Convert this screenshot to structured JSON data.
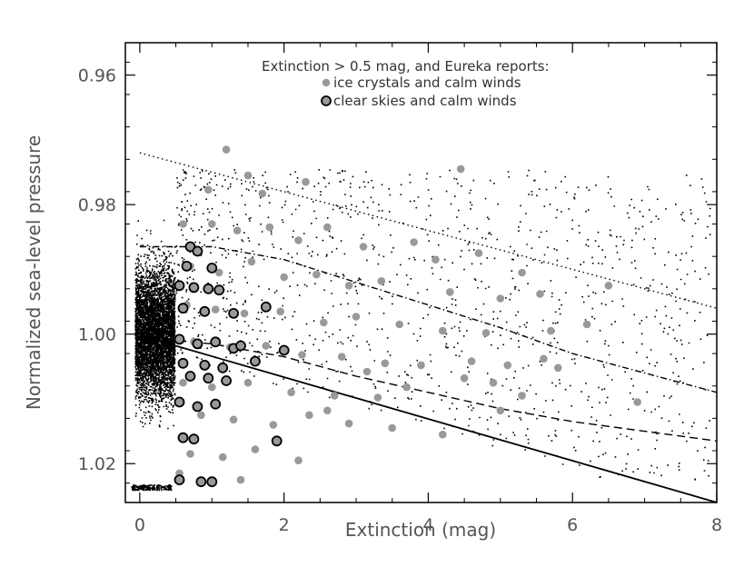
{
  "chart_data": {
    "type": "scatter",
    "title": "",
    "xlabel": "Extinction (mag)",
    "ylabel": "Normalized sea-level pressure",
    "xlim": [
      -0.2,
      8.0
    ],
    "ylim": [
      0.955,
      1.026
    ],
    "y_inverted": true,
    "grid": false,
    "x_ticks": [
      0,
      2,
      4,
      6,
      8
    ],
    "x_tick_labels": [
      "0",
      "2",
      "4",
      "6",
      "8"
    ],
    "y_ticks": [
      0.96,
      0.98,
      1.0,
      1.02
    ],
    "y_tick_labels": [
      "0.96",
      "0.98",
      "1.00",
      "1.02"
    ],
    "legend": {
      "title": "Extinction > 0.5 mag, and Eureka reports:",
      "placement": "top-center",
      "entries": [
        {
          "label": "ice crystals and calm winds",
          "marker": "gray-dot"
        },
        {
          "label": "clear skies and calm winds",
          "marker": "gray-dot-black-outline"
        }
      ]
    },
    "colors": {
      "background_points": "#000000",
      "ice_crystals": "#999999",
      "clear_skies_fill": "#999999",
      "clear_skies_edge": "#000000",
      "axes": "#000000",
      "text": "#555555"
    },
    "lines": [
      {
        "style": "dotted",
        "x": [
          0.0,
          8.0
        ],
        "y": [
          0.972,
          0.996
        ]
      },
      {
        "style": "dash-dot",
        "x": [
          0.0,
          1.0,
          2.0,
          3.0,
          4.0,
          5.0,
          6.0,
          7.0,
          8.0
        ],
        "y": [
          0.9865,
          0.9865,
          0.9885,
          0.992,
          0.9955,
          0.999,
          1.003,
          1.006,
          1.009
        ]
      },
      {
        "style": "dashed",
        "x": [
          0.0,
          1.0,
          2.0,
          3.0,
          4.0,
          5.0,
          6.0,
          7.0,
          8.0
        ],
        "y": [
          1.0005,
          1.0015,
          1.0035,
          1.0065,
          1.009,
          1.0115,
          1.0135,
          1.015,
          1.0165
        ]
      },
      {
        "style": "solid",
        "x": [
          0.0,
          8.0
        ],
        "y": [
          1.0002,
          1.026
        ]
      }
    ],
    "series": [
      {
        "name": "ice crystals and calm winds",
        "points": [
          [
            1.2,
            0.9715
          ],
          [
            1.5,
            0.9755
          ],
          [
            0.95,
            0.9777
          ],
          [
            1.7,
            0.9783
          ],
          [
            2.3,
            0.9765
          ],
          [
            4.45,
            0.9745
          ],
          [
            0.6,
            0.983
          ],
          [
            1.0,
            0.983
          ],
          [
            1.35,
            0.984
          ],
          [
            1.8,
            0.9835
          ],
          [
            2.2,
            0.9855
          ],
          [
            2.6,
            0.9835
          ],
          [
            3.1,
            0.9865
          ],
          [
            3.8,
            0.9858
          ],
          [
            4.1,
            0.9885
          ],
          [
            4.7,
            0.9875
          ],
          [
            5.3,
            0.9905
          ],
          [
            6.5,
            0.9925
          ],
          [
            0.7,
            0.9895
          ],
          [
            1.1,
            0.9905
          ],
          [
            1.55,
            0.9888
          ],
          [
            2.0,
            0.9912
          ],
          [
            2.45,
            0.9908
          ],
          [
            2.9,
            0.9925
          ],
          [
            3.35,
            0.9918
          ],
          [
            4.3,
            0.9935
          ],
          [
            5.0,
            0.9945
          ],
          [
            5.55,
            0.9938
          ],
          [
            0.65,
            0.9955
          ],
          [
            1.05,
            0.9962
          ],
          [
            1.45,
            0.9968
          ],
          [
            1.95,
            0.9965
          ],
          [
            2.55,
            0.9982
          ],
          [
            3.0,
            0.9973
          ],
          [
            3.6,
            0.9985
          ],
          [
            4.2,
            0.9995
          ],
          [
            4.8,
            0.9998
          ],
          [
            5.7,
            0.9995
          ],
          [
            6.2,
            0.9985
          ],
          [
            0.75,
            1.0012
          ],
          [
            1.25,
            1.002
          ],
          [
            1.75,
            1.0018
          ],
          [
            2.25,
            1.0032
          ],
          [
            2.8,
            1.0035
          ],
          [
            3.4,
            1.0045
          ],
          [
            3.9,
            1.0048
          ],
          [
            4.6,
            1.0042
          ],
          [
            5.1,
            1.0048
          ],
          [
            5.6,
            1.0038
          ],
          [
            0.6,
            1.0075
          ],
          [
            1.0,
            1.0082
          ],
          [
            1.5,
            1.0075
          ],
          [
            2.1,
            1.009
          ],
          [
            2.7,
            1.0095
          ],
          [
            3.3,
            1.0098
          ],
          [
            3.7,
            1.0082
          ],
          [
            4.9,
            1.0075
          ],
          [
            5.3,
            1.0095
          ],
          [
            6.9,
            1.0105
          ],
          [
            0.85,
            1.0125
          ],
          [
            1.3,
            1.0132
          ],
          [
            1.85,
            1.014
          ],
          [
            2.35,
            1.0125
          ],
          [
            2.9,
            1.0138
          ],
          [
            3.5,
            1.0145
          ],
          [
            4.2,
            1.0155
          ],
          [
            5.0,
            1.0118
          ],
          [
            0.7,
            1.0185
          ],
          [
            1.15,
            1.019
          ],
          [
            1.6,
            1.0178
          ],
          [
            2.2,
            1.0195
          ],
          [
            0.55,
            1.0215
          ],
          [
            1.4,
            1.0225
          ],
          [
            1.0,
            1.023
          ],
          [
            2.6,
            1.0118
          ],
          [
            4.5,
            1.0068
          ],
          [
            5.8,
            1.0052
          ],
          [
            3.15,
            1.0058
          ]
        ]
      },
      {
        "name": "clear skies and calm winds",
        "points": [
          [
            0.7,
            0.9865
          ],
          [
            0.8,
            0.9872
          ],
          [
            0.65,
            0.9895
          ],
          [
            1.0,
            0.9898
          ],
          [
            0.55,
            0.9925
          ],
          [
            0.75,
            0.9928
          ],
          [
            0.95,
            0.993
          ],
          [
            1.1,
            0.9932
          ],
          [
            0.6,
            0.996
          ],
          [
            0.9,
            0.9965
          ],
          [
            1.3,
            0.9968
          ],
          [
            1.75,
            0.9958
          ],
          [
            0.55,
            1.0008
          ],
          [
            0.8,
            1.0015
          ],
          [
            1.05,
            1.0012
          ],
          [
            1.3,
            1.0022
          ],
          [
            1.4,
            1.0018
          ],
          [
            2.0,
            1.0025
          ],
          [
            0.6,
            1.0045
          ],
          [
            0.9,
            1.0048
          ],
          [
            1.15,
            1.0052
          ],
          [
            1.6,
            1.0042
          ],
          [
            0.7,
            1.0065
          ],
          [
            0.95,
            1.0068
          ],
          [
            1.2,
            1.0072
          ],
          [
            0.55,
            1.0105
          ],
          [
            0.8,
            1.0112
          ],
          [
            1.05,
            1.0108
          ],
          [
            0.6,
            1.016
          ],
          [
            0.75,
            1.0162
          ],
          [
            1.9,
            1.0165
          ],
          [
            0.55,
            1.0225
          ],
          [
            0.85,
            1.0228
          ],
          [
            1.0,
            1.0228
          ]
        ]
      }
    ]
  }
}
